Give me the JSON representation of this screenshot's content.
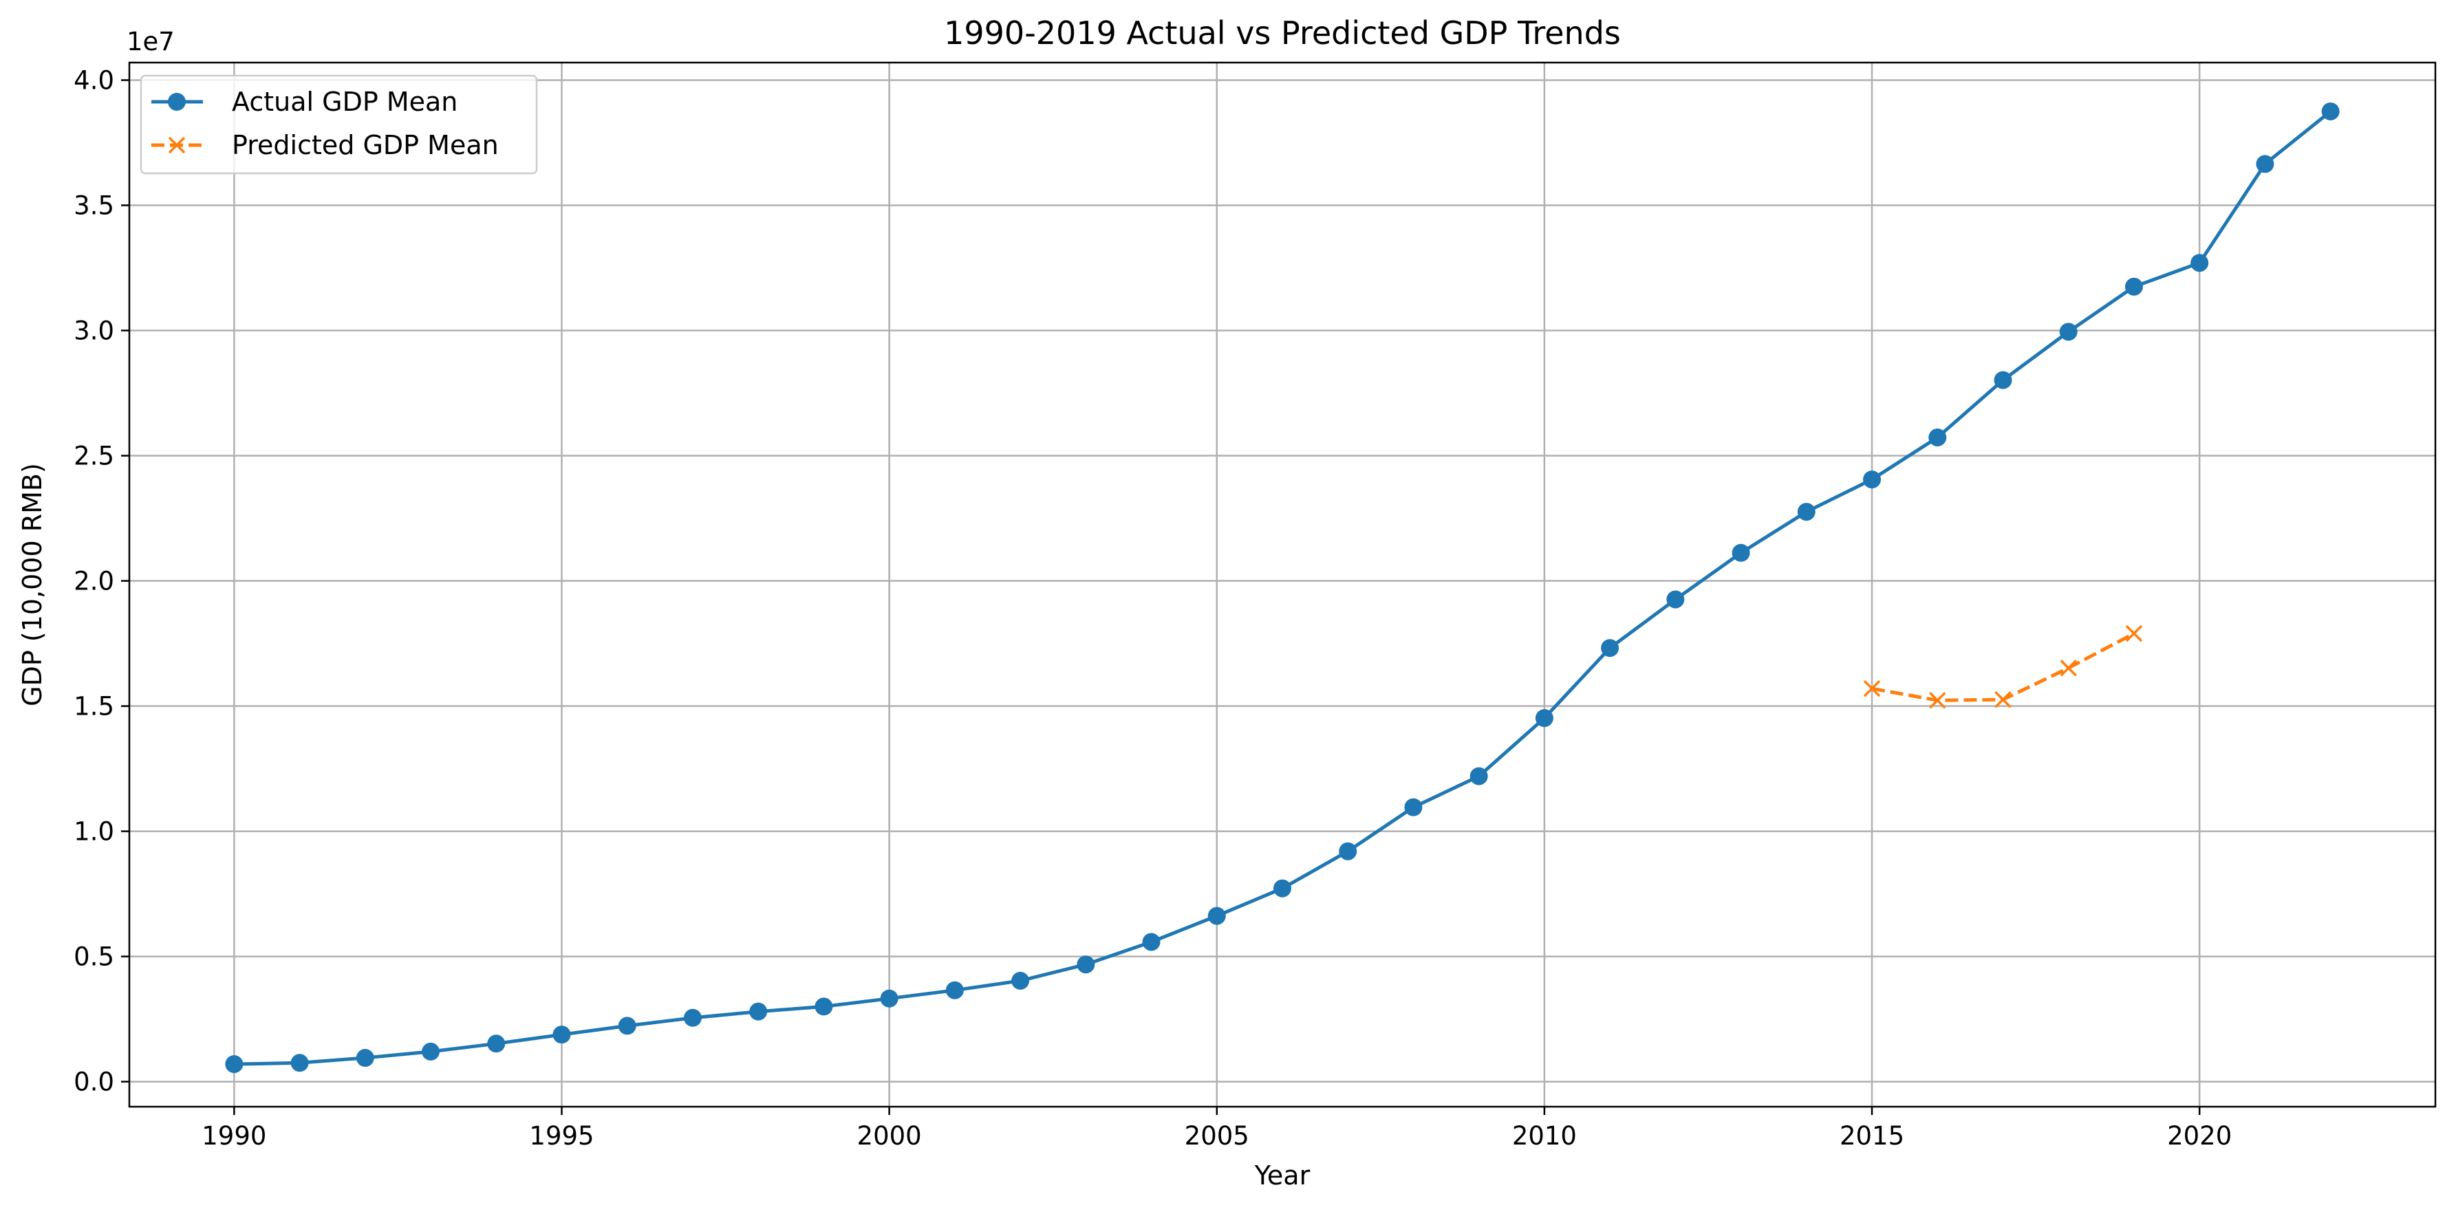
{
  "chart_data": {
    "type": "line",
    "title": "1990-2019 Actual vs Predicted GDP Trends",
    "xlabel": "Year",
    "ylabel": "GDP (10,000 RMB)",
    "y_multiplier_label": "1e7",
    "xlim": [
      1988.4,
      2023.6
    ],
    "ylim": [
      -1000000,
      40700000
    ],
    "x_ticks": [
      1990,
      1995,
      2000,
      2005,
      2010,
      2015,
      2020
    ],
    "x_tick_labels": [
      "1990",
      "1995",
      "2000",
      "2005",
      "2010",
      "2015",
      "2020"
    ],
    "y_ticks": [
      0,
      5000000,
      10000000,
      15000000,
      20000000,
      25000000,
      30000000,
      35000000,
      40000000
    ],
    "y_tick_labels": [
      "0.0",
      "0.5",
      "1.0",
      "1.5",
      "2.0",
      "2.5",
      "3.0",
      "3.5",
      "4.0"
    ],
    "grid": true,
    "legend_position": "upper-left",
    "series": [
      {
        "name": "Actual GDP Mean",
        "color": "#1f77b4",
        "line_style": "solid",
        "marker": "circle",
        "x": [
          1990,
          1991,
          1992,
          1993,
          1994,
          1995,
          1996,
          1997,
          1998,
          1999,
          2000,
          2001,
          2002,
          2003,
          2004,
          2005,
          2006,
          2007,
          2008,
          2009,
          2010,
          2011,
          2012,
          2013,
          2014,
          2015,
          2016,
          2017,
          2018,
          2019,
          2020,
          2021,
          2022
        ],
        "y": [
          700000,
          750000,
          950000,
          1200000,
          1520000,
          1880000,
          2230000,
          2550000,
          2800000,
          3000000,
          3320000,
          3650000,
          4030000,
          4680000,
          5580000,
          6620000,
          7720000,
          9200000,
          10960000,
          12200000,
          14520000,
          17320000,
          19260000,
          21120000,
          22760000,
          24050000,
          25730000,
          28020000,
          29950000,
          31750000,
          32700000,
          36650000,
          38750000
        ]
      },
      {
        "name": "Predicted GDP Mean",
        "color": "#ff7f0e",
        "line_style": "dashed",
        "marker": "x",
        "x": [
          2015,
          2016,
          2017,
          2018,
          2019
        ],
        "y": [
          15700000,
          15230000,
          15260000,
          16520000,
          17900000
        ]
      }
    ]
  }
}
